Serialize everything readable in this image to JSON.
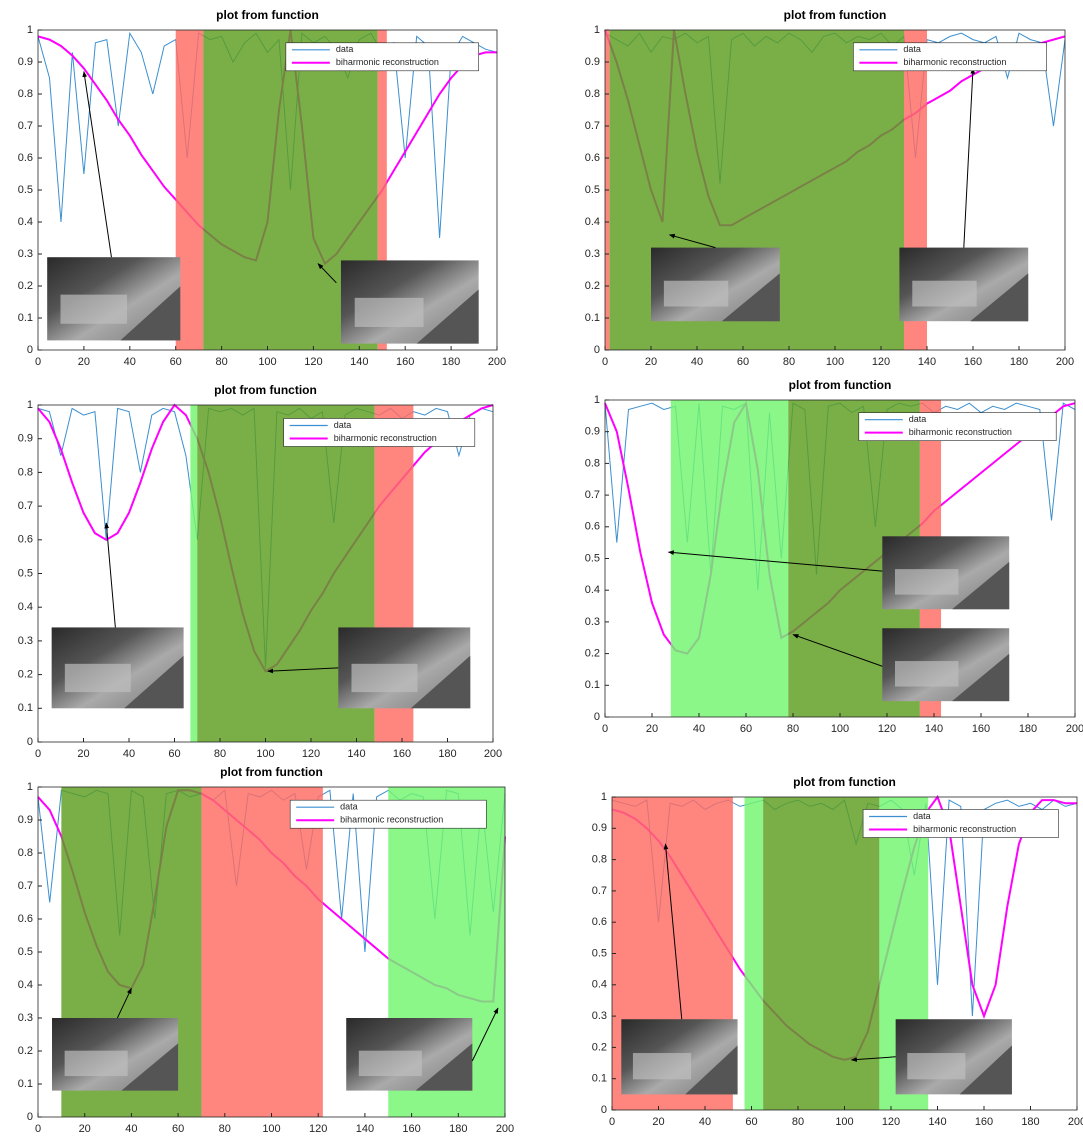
{
  "chart_data": [
    {
      "type": "line",
      "title": "plot from function",
      "x": [
        0,
        5,
        10,
        15,
        20,
        25,
        30,
        35,
        40,
        45,
        50,
        55,
        60,
        65,
        70,
        75,
        80,
        85,
        90,
        95,
        100,
        105,
        110,
        115,
        120,
        125,
        130,
        135,
        140,
        145,
        150,
        155,
        160,
        165,
        170,
        175,
        180,
        185,
        190,
        195,
        200
      ],
      "series": [
        {
          "name": "data",
          "color": "#3b8fd0",
          "values": [
            0.98,
            0.85,
            0.4,
            0.93,
            0.55,
            0.96,
            0.97,
            0.7,
            0.99,
            0.93,
            0.8,
            0.95,
            0.97,
            0.6,
            0.99,
            0.97,
            0.98,
            0.9,
            0.96,
            0.99,
            0.93,
            0.97,
            0.5,
            0.99,
            0.96,
            0.98,
            0.94,
            0.85,
            0.97,
            0.99,
            0.93,
            0.96,
            0.6,
            0.98,
            0.95,
            0.35,
            0.92,
            0.98,
            0.96,
            0.94,
            0.93
          ]
        },
        {
          "name": "biharmonic reconstruction",
          "color": "#ff00ff",
          "values": [
            0.98,
            0.97,
            0.95,
            0.92,
            0.88,
            0.83,
            0.78,
            0.72,
            0.67,
            0.61,
            0.56,
            0.51,
            0.47,
            0.43,
            0.39,
            0.36,
            0.33,
            0.31,
            0.29,
            0.28,
            0.4,
            0.75,
            1.0,
            0.7,
            0.35,
            0.27,
            0.3,
            0.35,
            0.4,
            0.45,
            0.5,
            0.56,
            0.62,
            0.68,
            0.74,
            0.8,
            0.85,
            0.89,
            0.92,
            0.93,
            0.93
          ]
        }
      ],
      "xlim": [
        0,
        200
      ],
      "ylim": [
        0,
        1
      ],
      "xticks": [
        0,
        20,
        40,
        60,
        80,
        100,
        120,
        140,
        160,
        180,
        200
      ],
      "yticks": [
        0,
        0.1,
        0.2,
        0.3,
        0.4,
        0.5,
        0.6,
        0.7,
        0.8,
        0.9,
        1
      ],
      "legend": "upper right",
      "regions": [
        {
          "x": [
            60,
            72
          ],
          "color": "#ff6b63"
        },
        {
          "x": [
            72,
            148
          ],
          "color": "#5d9e1f"
        },
        {
          "x": [
            148,
            152
          ],
          "color": "#ff6b63"
        }
      ],
      "arrows": [
        {
          "x": 20,
          "y": 0.87
        },
        {
          "x": 122,
          "y": 0.27
        }
      ]
    },
    {
      "type": "line",
      "title": "plot from function",
      "x": [
        0,
        5,
        10,
        15,
        20,
        25,
        30,
        35,
        40,
        45,
        50,
        55,
        60,
        65,
        70,
        75,
        80,
        85,
        90,
        95,
        100,
        105,
        110,
        115,
        120,
        125,
        130,
        135,
        140,
        145,
        150,
        155,
        160,
        165,
        170,
        175,
        180,
        185,
        190,
        195,
        200
      ],
      "series": [
        {
          "name": "data",
          "color": "#3b8fd0",
          "values": [
            0.99,
            0.97,
            0.95,
            0.99,
            0.93,
            0.98,
            0.97,
            0.99,
            0.96,
            0.98,
            0.52,
            0.97,
            0.99,
            0.95,
            0.98,
            0.96,
            0.99,
            0.97,
            0.93,
            0.98,
            0.99,
            0.96,
            0.98,
            0.97,
            0.99,
            0.95,
            0.98,
            0.6,
            0.97,
            0.96,
            0.98,
            0.99,
            0.97,
            0.96,
            0.98,
            0.85,
            0.99,
            0.97,
            0.96,
            0.7,
            0.97
          ]
        },
        {
          "name": "biharmonic reconstruction",
          "color": "#ff00ff",
          "values": [
            1.0,
            0.9,
            0.78,
            0.64,
            0.5,
            0.4,
            1.0,
            0.8,
            0.62,
            0.48,
            0.39,
            0.39,
            0.41,
            0.43,
            0.45,
            0.47,
            0.49,
            0.51,
            0.53,
            0.55,
            0.57,
            0.59,
            0.62,
            0.64,
            0.67,
            0.69,
            0.72,
            0.74,
            0.77,
            0.79,
            0.81,
            0.84,
            0.86,
            0.88,
            0.9,
            0.92,
            0.93,
            0.95,
            0.96,
            0.97,
            0.98
          ]
        }
      ],
      "xlim": [
        0,
        200
      ],
      "ylim": [
        0,
        1
      ],
      "xticks": [
        0,
        20,
        40,
        60,
        80,
        100,
        120,
        140,
        160,
        180,
        200
      ],
      "yticks": [
        0,
        0.1,
        0.2,
        0.3,
        0.4,
        0.5,
        0.6,
        0.7,
        0.8,
        0.9,
        1
      ],
      "legend": "upper right",
      "regions": [
        {
          "x": [
            0,
            2
          ],
          "color": "#ff6b63"
        },
        {
          "x": [
            2,
            130
          ],
          "color": "#5d9e1f"
        },
        {
          "x": [
            130,
            140
          ],
          "color": "#ff6b63"
        }
      ],
      "arrows": [
        {
          "x": 28,
          "y": 0.36
        },
        {
          "x": 160,
          "y": 0.88
        }
      ]
    },
    {
      "type": "line",
      "title": "plot from function",
      "x": [
        0,
        5,
        10,
        15,
        20,
        25,
        30,
        35,
        40,
        45,
        50,
        55,
        60,
        65,
        70,
        75,
        80,
        85,
        90,
        95,
        100,
        105,
        110,
        115,
        120,
        125,
        130,
        135,
        140,
        145,
        150,
        155,
        160,
        165,
        170,
        175,
        180,
        185,
        190,
        195,
        200
      ],
      "series": [
        {
          "name": "data",
          "color": "#3b8fd0",
          "values": [
            0.99,
            0.98,
            0.85,
            0.99,
            0.97,
            0.98,
            0.6,
            0.99,
            0.98,
            0.8,
            0.97,
            0.99,
            0.98,
            0.85,
            0.6,
            0.99,
            0.98,
            0.99,
            0.97,
            0.99,
            0.22,
            0.98,
            0.97,
            0.99,
            0.96,
            0.98,
            0.65,
            0.97,
            0.99,
            0.98,
            0.97,
            0.99,
            0.96,
            0.98,
            0.97,
            0.99,
            0.98,
            0.85,
            0.97,
            0.99,
            0.98
          ]
        },
        {
          "name": "biharmonic reconstruction",
          "color": "#ff00ff",
          "values": [
            0.99,
            0.95,
            0.87,
            0.77,
            0.68,
            0.62,
            0.6,
            0.62,
            0.68,
            0.77,
            0.87,
            0.95,
            1.0,
            0.97,
            0.9,
            0.8,
            0.67,
            0.52,
            0.38,
            0.27,
            0.21,
            0.23,
            0.28,
            0.33,
            0.39,
            0.44,
            0.5,
            0.55,
            0.6,
            0.65,
            0.7,
            0.74,
            0.78,
            0.82,
            0.86,
            0.89,
            0.92,
            0.95,
            0.97,
            0.99,
            1.0
          ]
        }
      ],
      "xlim": [
        0,
        200
      ],
      "ylim": [
        0,
        1
      ],
      "xticks": [
        0,
        20,
        40,
        60,
        80,
        100,
        120,
        140,
        160,
        180,
        200
      ],
      "yticks": [
        0,
        0.1,
        0.2,
        0.3,
        0.4,
        0.5,
        0.6,
        0.7,
        0.8,
        0.9,
        1
      ],
      "legend": "upper right",
      "regions": [
        {
          "x": [
            67,
            70
          ],
          "color": "#72f56e"
        },
        {
          "x": [
            70,
            148
          ],
          "color": "#5d9e1f"
        },
        {
          "x": [
            148,
            165
          ],
          "color": "#ff6b63"
        }
      ],
      "arrows": [
        {
          "x": 30,
          "y": 0.65
        },
        {
          "x": 101,
          "y": 0.21
        }
      ]
    },
    {
      "type": "line",
      "title": "plot from function",
      "x": [
        0,
        5,
        10,
        15,
        20,
        25,
        30,
        35,
        40,
        45,
        50,
        55,
        60,
        65,
        70,
        75,
        80,
        85,
        90,
        95,
        100,
        105,
        110,
        115,
        120,
        125,
        130,
        135,
        140,
        145,
        150,
        155,
        160,
        165,
        170,
        175,
        180,
        185,
        190,
        195,
        200
      ],
      "series": [
        {
          "name": "data",
          "color": "#3b8fd0",
          "values": [
            0.99,
            0.55,
            0.97,
            0.98,
            0.99,
            0.97,
            0.98,
            0.55,
            0.99,
            0.45,
            0.98,
            0.97,
            0.99,
            0.4,
            0.96,
            0.5,
            0.99,
            0.97,
            0.45,
            0.98,
            0.99,
            0.96,
            0.98,
            0.6,
            0.97,
            0.99,
            0.98,
            0.99,
            0.96,
            0.98,
            0.97,
            0.99,
            0.96,
            0.98,
            0.97,
            0.99,
            0.98,
            0.97,
            0.62,
            0.99,
            0.97
          ]
        },
        {
          "name": "biharmonic reconstruction",
          "color": "#ff00ff",
          "values": [
            0.99,
            0.9,
            0.72,
            0.52,
            0.36,
            0.26,
            0.21,
            0.2,
            0.25,
            0.45,
            0.72,
            0.93,
            0.99,
            0.78,
            0.45,
            0.25,
            0.27,
            0.3,
            0.33,
            0.36,
            0.4,
            0.43,
            0.46,
            0.49,
            0.52,
            0.55,
            0.58,
            0.61,
            0.65,
            0.68,
            0.71,
            0.74,
            0.77,
            0.8,
            0.83,
            0.86,
            0.89,
            0.92,
            0.95,
            0.98,
            0.99
          ]
        }
      ],
      "xlim": [
        0,
        200
      ],
      "ylim": [
        0,
        1
      ],
      "xticks": [
        0,
        20,
        40,
        60,
        80,
        100,
        120,
        140,
        160,
        180,
        200
      ],
      "yticks": [
        0,
        0.1,
        0.2,
        0.3,
        0.4,
        0.5,
        0.6,
        0.7,
        0.8,
        0.9,
        1
      ],
      "legend": "upper right",
      "regions": [
        {
          "x": [
            28,
            78
          ],
          "color": "#72f56e"
        },
        {
          "x": [
            78,
            134
          ],
          "color": "#5d9e1f"
        },
        {
          "x": [
            134,
            143
          ],
          "color": "#ff6b63"
        }
      ],
      "arrows": [
        {
          "x": 27,
          "y": 0.52
        },
        {
          "x": 80,
          "y": 0.26
        }
      ]
    },
    {
      "type": "line",
      "title": "plot from function",
      "x": [
        0,
        5,
        10,
        15,
        20,
        25,
        30,
        35,
        40,
        45,
        50,
        55,
        60,
        65,
        70,
        75,
        80,
        85,
        90,
        95,
        100,
        105,
        110,
        115,
        120,
        125,
        130,
        135,
        140,
        145,
        150,
        155,
        160,
        165,
        170,
        175,
        180,
        185,
        190,
        195,
        200
      ],
      "series": [
        {
          "name": "data",
          "color": "#3b8fd0",
          "values": [
            0.97,
            0.65,
            0.99,
            0.98,
            0.97,
            0.99,
            0.98,
            0.55,
            0.99,
            0.97,
            0.6,
            0.98,
            0.99,
            0.97,
            0.98,
            0.96,
            0.99,
            0.7,
            0.98,
            0.97,
            0.99,
            0.96,
            0.98,
            0.75,
            0.97,
            0.99,
            0.6,
            0.98,
            0.5,
            0.97,
            0.99,
            0.96,
            0.98,
            0.97,
            0.6,
            0.99,
            0.98,
            0.55,
            0.96,
            0.62,
            0.98
          ]
        },
        {
          "name": "biharmonic reconstruction",
          "color": "#ff00ff",
          "values": [
            0.97,
            0.93,
            0.85,
            0.74,
            0.62,
            0.52,
            0.44,
            0.4,
            0.39,
            0.46,
            0.66,
            0.88,
            0.99,
            0.99,
            0.98,
            0.96,
            0.93,
            0.9,
            0.87,
            0.84,
            0.8,
            0.77,
            0.73,
            0.7,
            0.66,
            0.63,
            0.6,
            0.57,
            0.54,
            0.51,
            0.48,
            0.46,
            0.44,
            0.42,
            0.4,
            0.39,
            0.37,
            0.36,
            0.35,
            0.35,
            0.85
          ]
        }
      ],
      "xlim": [
        0,
        200
      ],
      "ylim": [
        0,
        1
      ],
      "xticks": [
        0,
        20,
        40,
        60,
        80,
        100,
        120,
        140,
        160,
        180,
        200
      ],
      "yticks": [
        0,
        0.1,
        0.2,
        0.3,
        0.4,
        0.5,
        0.6,
        0.7,
        0.8,
        0.9,
        1
      ],
      "legend": "upper right",
      "regions": [
        {
          "x": [
            10,
            70
          ],
          "color": "#5d9e1f"
        },
        {
          "x": [
            70,
            122
          ],
          "color": "#ff6b63"
        },
        {
          "x": [
            150,
            200
          ],
          "color": "#72f56e"
        }
      ],
      "arrows": [
        {
          "x": 40,
          "y": 0.39
        },
        {
          "x": 197,
          "y": 0.33
        }
      ]
    },
    {
      "type": "line",
      "title": "plot from function",
      "x": [
        0,
        5,
        10,
        15,
        20,
        25,
        30,
        35,
        40,
        45,
        50,
        55,
        60,
        65,
        70,
        75,
        80,
        85,
        90,
        95,
        100,
        105,
        110,
        115,
        120,
        125,
        130,
        135,
        140,
        145,
        150,
        155,
        160,
        165,
        170,
        175,
        180,
        185,
        190,
        195,
        200
      ],
      "series": [
        {
          "name": "data",
          "color": "#3b8fd0",
          "values": [
            0.99,
            0.98,
            0.97,
            0.99,
            0.6,
            0.98,
            0.97,
            0.99,
            0.96,
            0.98,
            0.99,
            0.97,
            0.98,
            0.99,
            0.96,
            0.98,
            0.99,
            0.97,
            0.98,
            0.96,
            0.99,
            0.85,
            0.98,
            0.97,
            0.99,
            0.96,
            0.75,
            0.98,
            0.4,
            0.99,
            0.97,
            0.3,
            0.96,
            0.98,
            0.99,
            0.97,
            0.98,
            0.96,
            0.99,
            0.97,
            0.98
          ]
        },
        {
          "name": "biharmonic reconstruction",
          "color": "#ff00ff",
          "values": [
            0.96,
            0.95,
            0.93,
            0.9,
            0.86,
            0.81,
            0.75,
            0.69,
            0.63,
            0.57,
            0.51,
            0.45,
            0.4,
            0.35,
            0.31,
            0.27,
            0.24,
            0.21,
            0.19,
            0.17,
            0.16,
            0.17,
            0.25,
            0.4,
            0.55,
            0.7,
            0.84,
            0.95,
            1.0,
            0.9,
            0.65,
            0.4,
            0.3,
            0.4,
            0.65,
            0.85,
            0.95,
            0.99,
            0.99,
            0.98,
            0.98
          ]
        }
      ],
      "xlim": [
        0,
        200
      ],
      "ylim": [
        0,
        1
      ],
      "xticks": [
        0,
        20,
        40,
        60,
        80,
        100,
        120,
        140,
        160,
        180,
        200
      ],
      "yticks": [
        0,
        0.1,
        0.2,
        0.3,
        0.4,
        0.5,
        0.6,
        0.7,
        0.8,
        0.9,
        1
      ],
      "legend": "upper right",
      "regions": [
        {
          "x": [
            0,
            52
          ],
          "color": "#ff6b63"
        },
        {
          "x": [
            57,
            65
          ],
          "color": "#72f56e"
        },
        {
          "x": [
            65,
            115
          ],
          "color": "#5d9e1f"
        },
        {
          "x": [
            115,
            136
          ],
          "color": "#72f56e"
        }
      ],
      "arrows": [
        {
          "x": 23,
          "y": 0.85
        },
        {
          "x": 103,
          "y": 0.16
        }
      ]
    }
  ]
}
